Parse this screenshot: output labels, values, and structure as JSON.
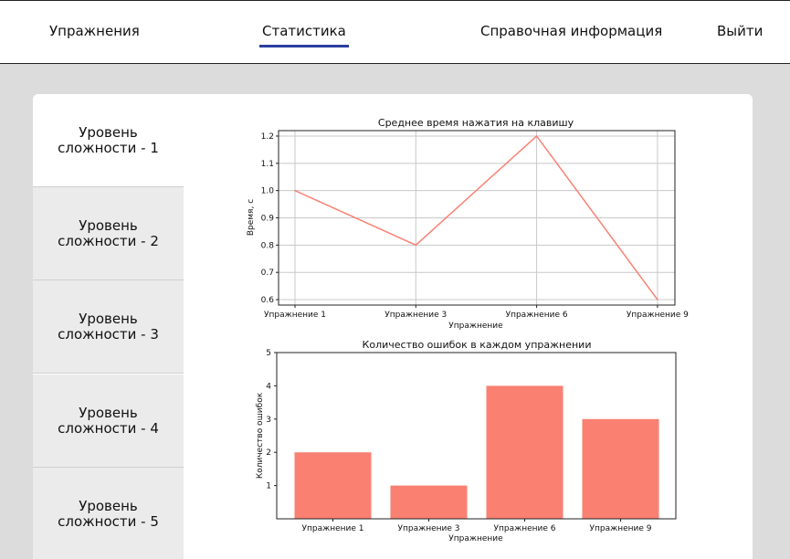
{
  "nav": {
    "exercises": "Упражнения",
    "statistics": "Статистика",
    "reference": "Справочная информация",
    "logout": "Выйти",
    "active": "statistics",
    "accent_color": "#2b3fa0"
  },
  "levels": [
    {
      "line1": "Уровень",
      "line2": "сложности - 1",
      "active": true
    },
    {
      "line1": "Уровень",
      "line2": "сложности - 2",
      "active": false
    },
    {
      "line1": "Уровень",
      "line2": "сложности - 3",
      "active": false
    },
    {
      "line1": "Уровень",
      "line2": "сложности - 4",
      "active": false
    },
    {
      "line1": "Уровень",
      "line2": "сложности - 5",
      "active": false
    }
  ],
  "chart_data": [
    {
      "type": "line",
      "title": "Среднее время нажатия на клавишу",
      "xlabel": "Упражнение",
      "ylabel": "Время, с",
      "categories": [
        "Упражнение 1",
        "Упражнение 3",
        "Упражнение 6",
        "Упражнение 9"
      ],
      "values": [
        1.0,
        0.8,
        1.2,
        0.6
      ],
      "yticks": [
        "0.6",
        "0.7",
        "0.8",
        "0.9",
        "1.0",
        "1.1",
        "1.2"
      ],
      "ylim": [
        0.58,
        1.22
      ],
      "grid": true,
      "color": "#fa8072"
    },
    {
      "type": "bar",
      "title": "Количество ошибок в каждом упражнении",
      "xlabel": "Упражнение",
      "ylabel": "Количество ошибок",
      "categories": [
        "Упражнение 1",
        "Упражнение 3",
        "Упражнение 6",
        "Упражнение 9"
      ],
      "values": [
        2,
        1,
        4,
        3
      ],
      "yticks": [
        "1",
        "2",
        "3",
        "4",
        "5"
      ],
      "ylim": [
        0,
        5
      ],
      "grid": false,
      "color": "#fa8072"
    }
  ]
}
